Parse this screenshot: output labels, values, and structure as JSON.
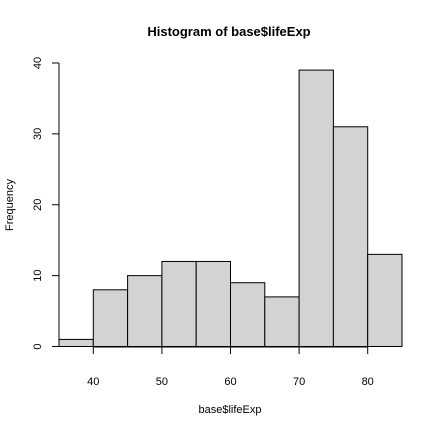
{
  "chart_data": {
    "type": "bar",
    "title": "Histogram of base$lifeExp",
    "xlabel": "base$lifeExp",
    "ylabel": "Frequency",
    "bins": [
      {
        "start": 35,
        "end": 40,
        "count": 1
      },
      {
        "start": 40,
        "end": 45,
        "count": 8
      },
      {
        "start": 45,
        "end": 50,
        "count": 10
      },
      {
        "start": 50,
        "end": 55,
        "count": 12
      },
      {
        "start": 55,
        "end": 60,
        "count": 12
      },
      {
        "start": 60,
        "end": 65,
        "count": 9
      },
      {
        "start": 65,
        "end": 70,
        "count": 7
      },
      {
        "start": 70,
        "end": 75,
        "count": 39
      },
      {
        "start": 75,
        "end": 80,
        "count": 31
      },
      {
        "start": 80,
        "end": 85,
        "count": 13
      }
    ],
    "xlim": [
      35,
      85
    ],
    "ylim": [
      0,
      40
    ],
    "x_ticks": [
      40,
      50,
      60,
      70,
      80
    ],
    "y_ticks": [
      0,
      10,
      20,
      30,
      40
    ],
    "bar_color": "#d3d3d3",
    "bar_border_color": "#000000",
    "grid": false,
    "legend": "none"
  }
}
